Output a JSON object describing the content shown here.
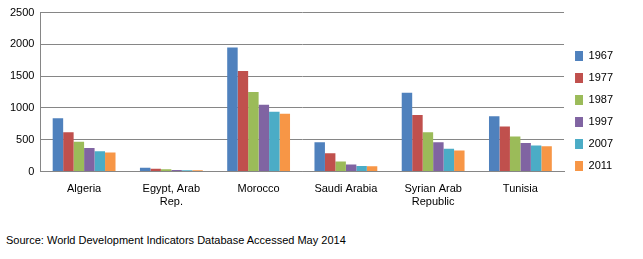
{
  "chart_data": {
    "type": "bar",
    "categories": [
      "Algeria",
      "Egypt, Arab Rep.",
      "Morocco",
      "Saudi Arabia",
      "Syrian Arab Republic",
      "Tunisia"
    ],
    "series": [
      {
        "name": "1967",
        "color": "#4f81bd",
        "values": [
          840,
          60,
          1950,
          460,
          1240,
          870
        ]
      },
      {
        "name": "1977",
        "color": "#c0504d",
        "values": [
          620,
          45,
          1580,
          290,
          890,
          710
        ]
      },
      {
        "name": "1987",
        "color": "#9bbb59",
        "values": [
          470,
          35,
          1250,
          160,
          620,
          550
        ]
      },
      {
        "name": "1997",
        "color": "#8064a2",
        "values": [
          370,
          25,
          1050,
          110,
          460,
          450
        ]
      },
      {
        "name": "2007",
        "color": "#4bacc6",
        "values": [
          320,
          20,
          940,
          90,
          360,
          410
        ]
      },
      {
        "name": "2011",
        "color": "#f79646",
        "values": [
          300,
          20,
          910,
          85,
          330,
          400
        ]
      }
    ],
    "ylim": [
      0,
      2500
    ],
    "yticks": [
      0,
      500,
      1000,
      1500,
      2000,
      2500
    ],
    "grid": true,
    "legend": "right",
    "annotations": [
      "Source: World Development Indicators Database Accessed May 2014"
    ]
  }
}
